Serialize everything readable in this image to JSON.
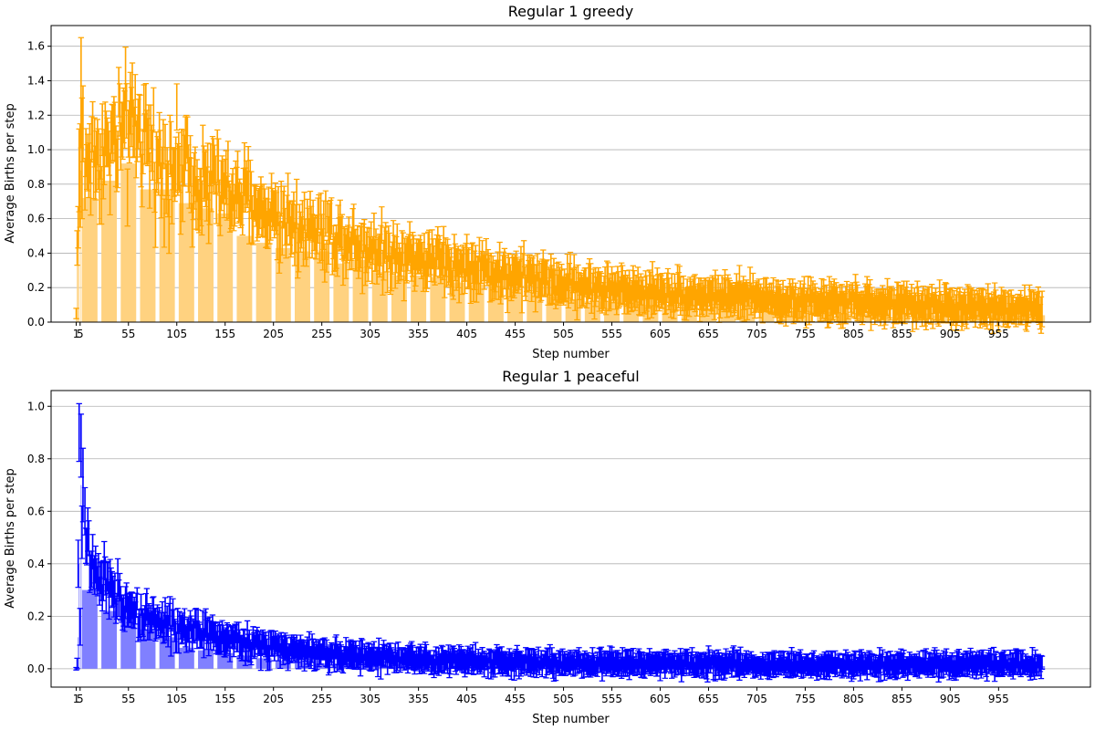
{
  "chart_data": [
    {
      "type": "bar",
      "title": "Regular 1 greedy",
      "xlabel": "Step number",
      "ylabel": "Average Births per step",
      "x_range": [
        1,
        1000
      ],
      "ylim": [
        0,
        1.72
      ],
      "x_ticks": [
        "1",
        "5",
        "55",
        "105",
        "155",
        "205",
        "255",
        "305",
        "355",
        "405",
        "455",
        "505",
        "555",
        "605",
        "655",
        "705",
        "755",
        "805",
        "855",
        "905",
        "955"
      ],
      "y_ticks": [
        "0.0",
        "0.2",
        "0.4",
        "0.6",
        "0.8",
        "1.0",
        "1.2",
        "1.4",
        "1.6"
      ],
      "grid": "horizontal",
      "colors": {
        "bar": "#ffd280",
        "error": "#ffa500"
      },
      "bars": [
        {
          "x": 1,
          "y": 0.05
        },
        {
          "x": 2,
          "y": 0.43
        },
        {
          "x": 3,
          "y": 0.55
        },
        {
          "x": 4,
          "y": 0.9
        },
        {
          "x": 6,
          "y": 0.88
        },
        {
          "x": 15,
          "y": 0.72
        },
        {
          "x": 35,
          "y": 0.82
        },
        {
          "x": 55,
          "y": 0.92
        },
        {
          "x": 75,
          "y": 0.77
        },
        {
          "x": 95,
          "y": 0.77
        },
        {
          "x": 115,
          "y": 0.69
        },
        {
          "x": 135,
          "y": 0.66
        },
        {
          "x": 155,
          "y": 0.63
        },
        {
          "x": 175,
          "y": 0.5
        },
        {
          "x": 195,
          "y": 0.46
        },
        {
          "x": 215,
          "y": 0.43
        },
        {
          "x": 235,
          "y": 0.41
        },
        {
          "x": 255,
          "y": 0.41
        },
        {
          "x": 275,
          "y": 0.34
        },
        {
          "x": 295,
          "y": 0.36
        },
        {
          "x": 315,
          "y": 0.29
        },
        {
          "x": 335,
          "y": 0.27
        },
        {
          "x": 355,
          "y": 0.27
        },
        {
          "x": 375,
          "y": 0.26
        },
        {
          "x": 395,
          "y": 0.23
        },
        {
          "x": 415,
          "y": 0.22
        },
        {
          "x": 435,
          "y": 0.21
        },
        {
          "x": 455,
          "y": 0.19
        },
        {
          "x": 475,
          "y": 0.17
        },
        {
          "x": 495,
          "y": 0.15
        },
        {
          "x": 515,
          "y": 0.13
        },
        {
          "x": 535,
          "y": 0.12
        },
        {
          "x": 555,
          "y": 0.12
        },
        {
          "x": 575,
          "y": 0.11
        },
        {
          "x": 595,
          "y": 0.1
        },
        {
          "x": 615,
          "y": 0.1
        },
        {
          "x": 635,
          "y": 0.09
        },
        {
          "x": 655,
          "y": 0.08
        },
        {
          "x": 675,
          "y": 0.08
        },
        {
          "x": 695,
          "y": 0.07
        },
        {
          "x": 715,
          "y": 0.07
        },
        {
          "x": 735,
          "y": 0.06
        },
        {
          "x": 755,
          "y": 0.06
        },
        {
          "x": 775,
          "y": 0.06
        },
        {
          "x": 795,
          "y": 0.05
        },
        {
          "x": 815,
          "y": 0.05
        },
        {
          "x": 835,
          "y": 0.05
        },
        {
          "x": 855,
          "y": 0.05
        },
        {
          "x": 875,
          "y": 0.05
        },
        {
          "x": 895,
          "y": 0.04
        },
        {
          "x": 915,
          "y": 0.04
        },
        {
          "x": 935,
          "y": 0.04
        },
        {
          "x": 955,
          "y": 0.04
        },
        {
          "x": 975,
          "y": 0.04
        },
        {
          "x": 995,
          "y": 0.04
        }
      ],
      "trend": {
        "x": [
          5,
          15,
          25,
          35,
          45,
          55,
          65,
          75,
          85,
          95,
          105,
          125,
          155,
          205,
          255,
          305,
          355,
          405,
          455,
          505,
          555,
          605,
          655,
          705,
          755,
          805,
          855,
          905,
          955,
          1000
        ],
        "y": [
          0.92,
          0.95,
          0.97,
          1.02,
          1.05,
          1.1,
          1.08,
          1.0,
          0.95,
          0.92,
          0.9,
          0.85,
          0.75,
          0.62,
          0.52,
          0.43,
          0.37,
          0.32,
          0.27,
          0.22,
          0.19,
          0.17,
          0.15,
          0.14,
          0.12,
          0.11,
          0.1,
          0.09,
          0.08,
          0.08
        ]
      },
      "error_scale": 0.1,
      "early_points": [
        {
          "x": 1,
          "y": 0.05,
          "err": 0.03
        },
        {
          "x": 2,
          "y": 0.43,
          "err": 0.1
        },
        {
          "x": 3,
          "y": 0.55,
          "err": 0.12
        },
        {
          "x": 4,
          "y": 0.88,
          "err": 0.24
        },
        {
          "x": 5,
          "y": 0.85,
          "err": 0.3
        },
        {
          "x": 6,
          "y": 1.33,
          "err": 0.32
        },
        {
          "x": 7,
          "y": 0.95,
          "err": 0.35
        },
        {
          "x": 8,
          "y": 1.15,
          "err": 0.22
        },
        {
          "x": 10,
          "y": 0.8,
          "err": 0.15
        }
      ]
    },
    {
      "type": "bar",
      "title": "Regular 1 peaceful",
      "xlabel": "Step number",
      "ylabel": "Average Births per step",
      "x_range": [
        1,
        1000
      ],
      "ylim": [
        -0.07,
        1.06
      ],
      "x_ticks": [
        "1",
        "5",
        "55",
        "105",
        "155",
        "205",
        "255",
        "305",
        "355",
        "405",
        "455",
        "505",
        "555",
        "605",
        "655",
        "705",
        "755",
        "805",
        "855",
        "905",
        "955"
      ],
      "y_ticks": [
        "0.0",
        "0.2",
        "0.4",
        "0.6",
        "0.8",
        "1.0"
      ],
      "grid": "horizontal",
      "colors": {
        "bar": "#8080ff",
        "error": "#0000ff"
      },
      "bars": [
        {
          "x": 1,
          "y": 0.0
        },
        {
          "x": 2,
          "y": 0.02
        },
        {
          "x": 3,
          "y": 0.12
        },
        {
          "x": 4,
          "y": 0.4
        },
        {
          "x": 6,
          "y": 0.7
        },
        {
          "x": 15,
          "y": 0.3
        },
        {
          "x": 35,
          "y": 0.22
        },
        {
          "x": 55,
          "y": 0.2
        },
        {
          "x": 75,
          "y": 0.15
        },
        {
          "x": 95,
          "y": 0.12
        },
        {
          "x": 115,
          "y": 0.08
        },
        {
          "x": 135,
          "y": 0.07
        },
        {
          "x": 155,
          "y": 0.06
        },
        {
          "x": 175,
          "y": 0.05
        },
        {
          "x": 195,
          "y": 0.04
        },
        {
          "x": 215,
          "y": 0.03
        },
        {
          "x": 235,
          "y": 0.03
        },
        {
          "x": 255,
          "y": 0.02
        },
        {
          "x": 275,
          "y": 0.02
        },
        {
          "x": 295,
          "y": 0.02
        },
        {
          "x": 315,
          "y": 0.02
        },
        {
          "x": 335,
          "y": 0.02
        },
        {
          "x": 355,
          "y": 0.01
        },
        {
          "x": 375,
          "y": 0.01
        },
        {
          "x": 395,
          "y": 0.01
        },
        {
          "x": 415,
          "y": 0.01
        },
        {
          "x": 435,
          "y": 0.01
        },
        {
          "x": 455,
          "y": 0.01
        },
        {
          "x": 475,
          "y": 0.01
        },
        {
          "x": 495,
          "y": 0.01
        },
        {
          "x": 515,
          "y": 0.01
        },
        {
          "x": 535,
          "y": 0.01
        },
        {
          "x": 555,
          "y": 0.01
        },
        {
          "x": 575,
          "y": 0.01
        },
        {
          "x": 595,
          "y": 0.01
        },
        {
          "x": 615,
          "y": 0.01
        },
        {
          "x": 635,
          "y": 0.01
        },
        {
          "x": 655,
          "y": 0.01
        },
        {
          "x": 675,
          "y": 0.01
        },
        {
          "x": 695,
          "y": 0.01
        },
        {
          "x": 715,
          "y": 0.01
        },
        {
          "x": 735,
          "y": 0.01
        },
        {
          "x": 755,
          "y": 0.01
        },
        {
          "x": 775,
          "y": 0.01
        },
        {
          "x": 795,
          "y": 0.01
        },
        {
          "x": 815,
          "y": 0.01
        },
        {
          "x": 835,
          "y": 0.01
        },
        {
          "x": 855,
          "y": 0.01
        },
        {
          "x": 875,
          "y": 0.01
        },
        {
          "x": 895,
          "y": 0.01
        },
        {
          "x": 915,
          "y": 0.01
        },
        {
          "x": 935,
          "y": 0.01
        },
        {
          "x": 955,
          "y": 0.01
        },
        {
          "x": 975,
          "y": 0.01
        },
        {
          "x": 995,
          "y": 0.01
        }
      ],
      "trend": {
        "x": [
          5,
          10,
          15,
          25,
          35,
          45,
          55,
          65,
          75,
          85,
          95,
          105,
          125,
          155,
          205,
          255,
          305,
          355,
          405,
          455,
          505,
          605,
          705,
          805,
          905,
          1000
        ],
        "y": [
          0.5,
          0.45,
          0.42,
          0.35,
          0.3,
          0.27,
          0.24,
          0.22,
          0.2,
          0.18,
          0.17,
          0.16,
          0.14,
          0.11,
          0.08,
          0.06,
          0.045,
          0.035,
          0.03,
          0.025,
          0.02,
          0.02,
          0.015,
          0.015,
          0.015,
          0.015
        ]
      },
      "error_scale": 0.05,
      "early_points": [
        {
          "x": 1,
          "y": 0.0,
          "err": 0.005
        },
        {
          "x": 2,
          "y": 0.02,
          "err": 0.02
        },
        {
          "x": 3,
          "y": 0.4,
          "err": 0.09
        },
        {
          "x": 4,
          "y": 0.9,
          "err": 0.11
        },
        {
          "x": 5,
          "y": 0.16,
          "err": 0.07
        },
        {
          "x": 6,
          "y": 0.85,
          "err": 0.12
        },
        {
          "x": 7,
          "y": 0.52,
          "err": 0.1
        },
        {
          "x": 8,
          "y": 0.7,
          "err": 0.14
        },
        {
          "x": 10,
          "y": 0.6,
          "err": 0.09
        }
      ]
    }
  ]
}
